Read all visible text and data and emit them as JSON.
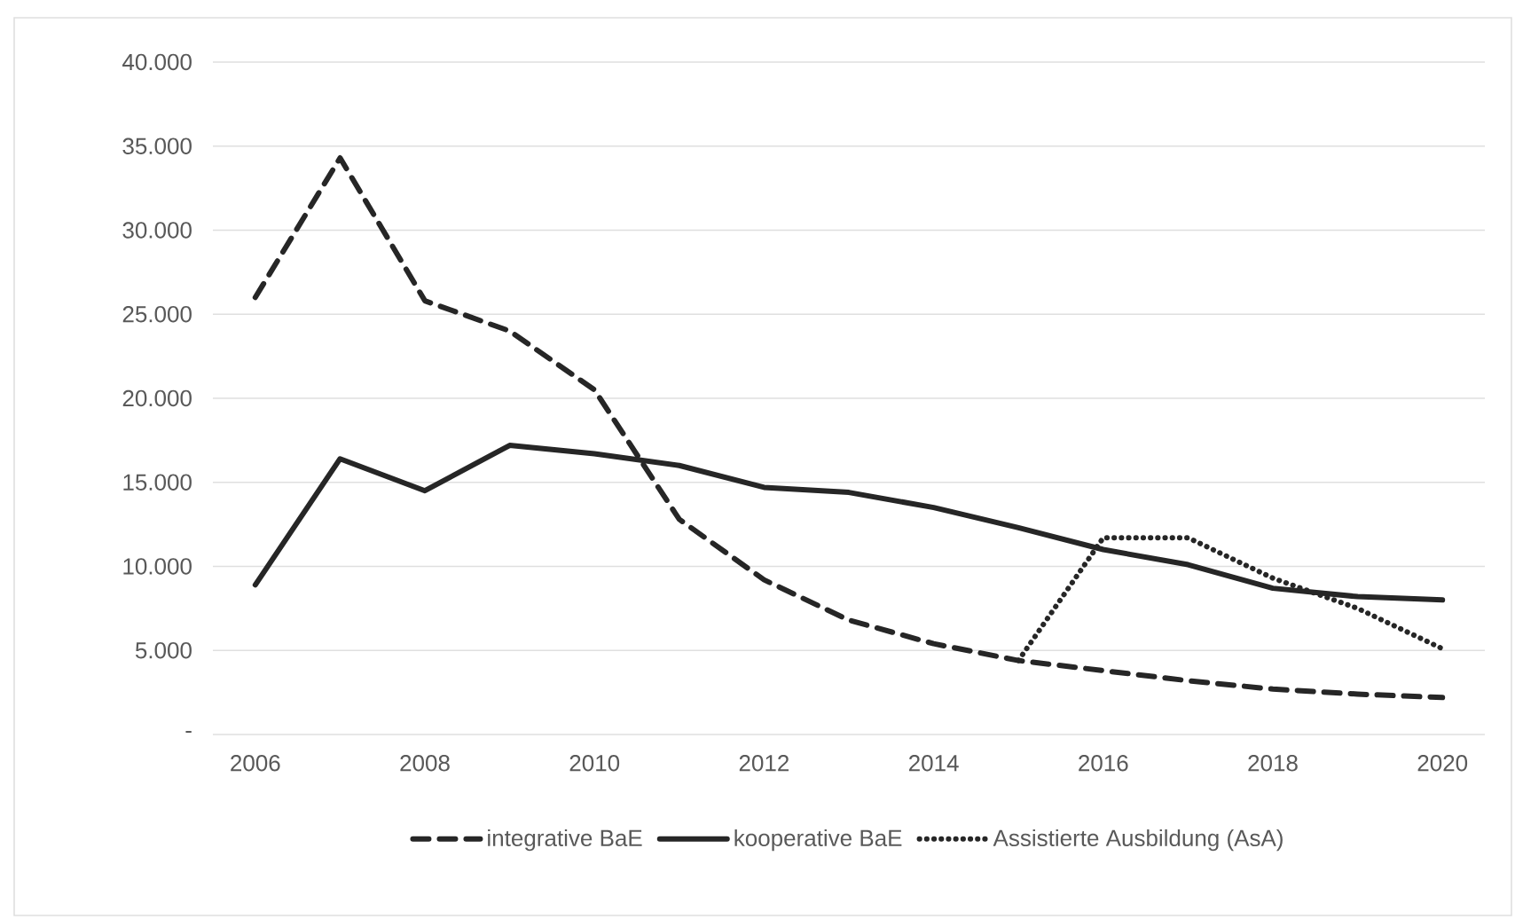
{
  "chart_data": {
    "type": "line",
    "x": [
      2006,
      2007,
      2008,
      2009,
      2010,
      2011,
      2012,
      2013,
      2014,
      2015,
      2016,
      2017,
      2018,
      2019,
      2020
    ],
    "series": [
      {
        "name": "integrative BaE",
        "color": "#262626",
        "line_style": "dashed",
        "values": [
          26000,
          34300,
          25800,
          24000,
          20500,
          12800,
          9200,
          6800,
          5400,
          4400,
          3800,
          3200,
          2700,
          2400,
          2200
        ]
      },
      {
        "name": "kooperative BaE",
        "color": "#262626",
        "line_style": "solid",
        "values": [
          8900,
          16400,
          14500,
          17200,
          16700,
          16000,
          14700,
          14400,
          13500,
          12300,
          11000,
          10100,
          8700,
          8200,
          8000
        ]
      },
      {
        "name": "Assistierte Ausbildung (AsA)",
        "color": "#262626",
        "line_style": "dotted",
        "values": [
          null,
          null,
          null,
          null,
          null,
          null,
          null,
          null,
          null,
          4400,
          11700,
          11700,
          9300,
          7500,
          5100
        ]
      }
    ],
    "xlim": [
      2005.5,
      2020.5
    ],
    "xticks": [
      2006,
      2008,
      2010,
      2012,
      2014,
      2016,
      2018,
      2020
    ],
    "ylim": [
      0,
      40000
    ],
    "yticks": [
      {
        "value": 0,
        "label": "-"
      },
      {
        "value": 5000,
        "label": "5.000"
      },
      {
        "value": 10000,
        "label": "10.000"
      },
      {
        "value": 15000,
        "label": "15.000"
      },
      {
        "value": 20000,
        "label": "20.000"
      },
      {
        "value": 25000,
        "label": "25.000"
      },
      {
        "value": 30000,
        "label": "30.000"
      },
      {
        "value": 35000,
        "label": "35.000"
      },
      {
        "value": 40000,
        "label": "40.000"
      }
    ],
    "grid": "y",
    "legend": "bottom"
  }
}
